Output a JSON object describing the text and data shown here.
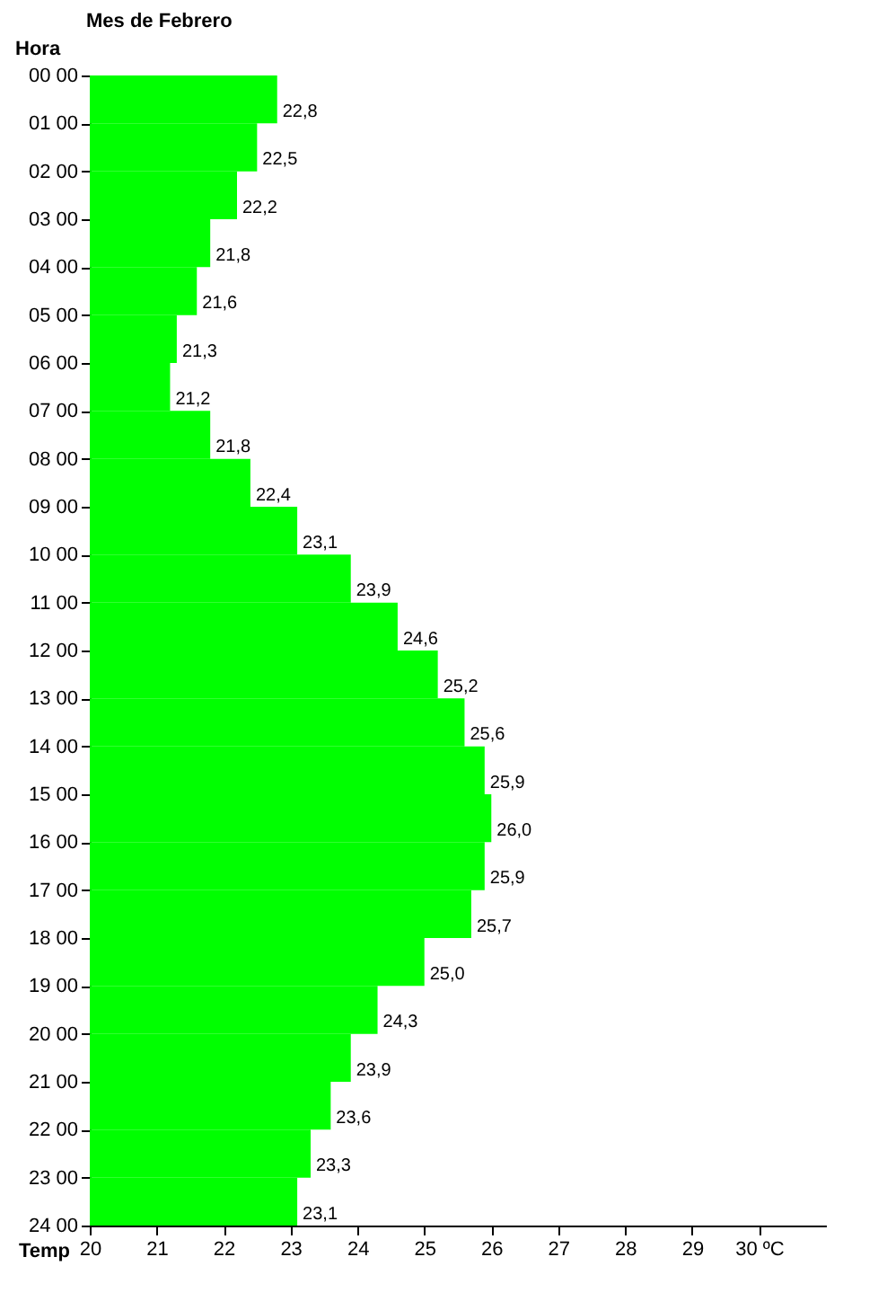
{
  "chart_data": {
    "type": "bar",
    "orientation": "horizontal",
    "title": "Mes de Febrero",
    "xlabel": "Temp",
    "ylabel": "Hora",
    "categories": [
      "00 00",
      "01 00",
      "02 00",
      "03 00",
      "04 00",
      "05 00",
      "06 00",
      "07 00",
      "08 00",
      "09 00",
      "10 00",
      "11 00",
      "12 00",
      "13 00",
      "14 00",
      "15 00",
      "16 00",
      "17 00",
      "18 00",
      "19 00",
      "20 00",
      "21 00",
      "22 00",
      "23 00",
      "24 00"
    ],
    "values": [
      22.8,
      22.5,
      22.2,
      21.8,
      21.6,
      21.3,
      21.2,
      21.8,
      22.4,
      23.1,
      23.9,
      24.6,
      25.2,
      25.6,
      25.9,
      26.0,
      25.9,
      25.7,
      25.0,
      24.3,
      23.9,
      23.6,
      23.3,
      23.1,
      null
    ],
    "value_labels": [
      "22,8",
      "22,5",
      "22,2",
      "21,8",
      "21,6",
      "21,3",
      "21,2",
      "21,8",
      "22,4",
      "23,1",
      "23,9",
      "24,6",
      "25,2",
      "25,6",
      "25,9",
      "26,0",
      "25,9",
      "25,7",
      "25,0",
      "24,3",
      "23,9",
      "23,6",
      "23,3",
      "23,1",
      null
    ],
    "color": "#00ff00",
    "xlim": [
      20,
      31
    ],
    "xticks": [
      20,
      21,
      22,
      23,
      24,
      25,
      26,
      27,
      28,
      29,
      {
        "value": 30,
        "label": "30 ºC"
      }
    ],
    "grid": false
  }
}
